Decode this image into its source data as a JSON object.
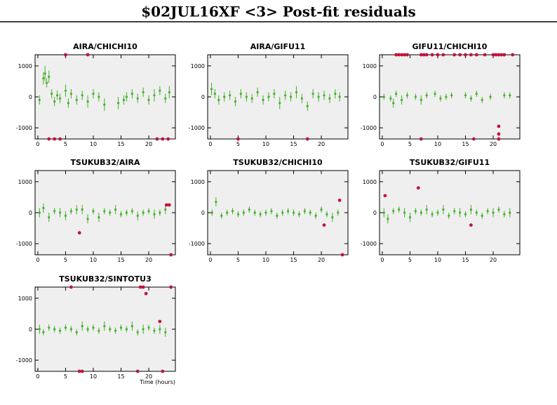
{
  "title": "$02JUL16XF <3> Post-fit residuals",
  "chart_data": [
    {
      "type": "scatter",
      "title": "AIRA/CHICHI10",
      "xlim": [
        -0.5,
        24.8
      ],
      "ylim": [
        -1360,
        1360
      ],
      "xticks": [
        0,
        5,
        10,
        15,
        20
      ],
      "yticks": [
        1000,
        0,
        -1000
      ],
      "series": [
        {
          "color": "#44b02a",
          "x": [
            0.3,
            1,
            1.3,
            1.6,
            2,
            2.5,
            3,
            3.5,
            4,
            5,
            5.5,
            6,
            7,
            8,
            9,
            10,
            11,
            12,
            14.5,
            15.5,
            16,
            17,
            18,
            19,
            20,
            21,
            22,
            23,
            23.7
          ],
          "values": [
            -100,
            600,
            750,
            450,
            650,
            100,
            -150,
            50,
            -50,
            200,
            -200,
            100,
            -100,
            50,
            -150,
            100,
            0,
            -250,
            -200,
            -100,
            0,
            100,
            -50,
            150,
            -100,
            50,
            200,
            -50,
            150
          ],
          "errors": [
            150,
            200,
            250,
            150,
            200,
            150,
            150,
            150,
            150,
            200,
            150,
            150,
            150,
            150,
            200,
            150,
            150,
            200,
            200,
            150,
            150,
            150,
            150,
            150,
            150,
            200,
            150,
            150,
            200
          ]
        },
        {
          "color": "#c0143c",
          "x": [
            2,
            3,
            4,
            5,
            9,
            21.5,
            22.5,
            23.5
          ],
          "values": [
            -1360,
            -1360,
            -1360,
            1360,
            1360,
            -1360,
            -1360,
            -1360
          ]
        }
      ]
    },
    {
      "type": "scatter",
      "title": "AIRA/GIFU11",
      "xlim": [
        -0.5,
        24.8
      ],
      "ylim": [
        -1360,
        1360
      ],
      "xticks": [
        0,
        5,
        10,
        15,
        20
      ],
      "yticks": [
        1000,
        0,
        -1000
      ],
      "series": [
        {
          "color": "#44b02a",
          "x": [
            0.2,
            0.8,
            1.5,
            2.5,
            3.5,
            4.5,
            5.5,
            6.5,
            7.5,
            8.5,
            9.5,
            10.5,
            11.5,
            12.5,
            13.5,
            14.5,
            15.5,
            16.5,
            17.5,
            18.5,
            19.5,
            20.5,
            21.5,
            22.5,
            23.3
          ],
          "values": [
            250,
            100,
            -100,
            0,
            50,
            -150,
            100,
            0,
            -50,
            150,
            -100,
            0,
            100,
            -200,
            50,
            0,
            150,
            -50,
            -300,
            100,
            0,
            50,
            -50,
            100,
            0
          ],
          "errors": [
            200,
            150,
            150,
            150,
            150,
            150,
            150,
            150,
            150,
            150,
            150,
            150,
            150,
            200,
            150,
            150,
            200,
            150,
            150,
            150,
            150,
            150,
            150,
            150,
            150
          ]
        },
        {
          "color": "#c0143c",
          "x": [
            5,
            17.5
          ],
          "values": [
            -1360,
            -1360
          ]
        }
      ]
    },
    {
      "type": "scatter",
      "title": "GIFU11/CHICHI10",
      "xlim": [
        -0.5,
        24.8
      ],
      "ylim": [
        -1360,
        1360
      ],
      "xticks": [
        0,
        5,
        10,
        15,
        20
      ],
      "yticks": [
        1000,
        0,
        -1000
      ],
      "series": [
        {
          "color": "#44b02a",
          "x": [
            0.3,
            1.5,
            2,
            2.5,
            3.5,
            4.5,
            6,
            7,
            8,
            9.5,
            10.5,
            11.5,
            12.5,
            15,
            16,
            17,
            18,
            19.5,
            22,
            23
          ],
          "values": [
            0,
            -50,
            -200,
            100,
            -100,
            50,
            0,
            -100,
            50,
            100,
            -50,
            0,
            50,
            50,
            -50,
            100,
            -100,
            0,
            50,
            50
          ],
          "errors": [
            100,
            100,
            150,
            100,
            150,
            100,
            100,
            150,
            100,
            100,
            100,
            100,
            100,
            100,
            100,
            100,
            100,
            100,
            100,
            100
          ]
        },
        {
          "color": "#c0143c",
          "x": [
            2.5,
            3,
            3.5,
            4,
            4.5,
            7,
            7.5,
            8,
            9,
            10,
            11,
            13,
            14,
            15,
            16,
            17,
            18.5,
            20,
            20.5,
            21,
            21.5,
            22,
            23.5,
            7,
            16.5,
            21,
            21,
            21
          ],
          "values": [
            1360,
            1360,
            1360,
            1360,
            1360,
            1360,
            1360,
            1360,
            1360,
            1360,
            1360,
            1360,
            1360,
            1360,
            1360,
            1360,
            1360,
            1360,
            1360,
            1360,
            1360,
            1360,
            1360,
            -1360,
            -1360,
            -1360,
            -1200,
            -950
          ]
        }
      ]
    },
    {
      "type": "scatter",
      "title": "TSUKUB32/AIRA",
      "xlim": [
        -0.5,
        24.8
      ],
      "ylim": [
        -1360,
        1360
      ],
      "xticks": [
        0,
        5,
        10,
        15,
        20
      ],
      "yticks": [
        1000,
        0,
        -1000
      ],
      "series": [
        {
          "color": "#44b02a",
          "x": [
            0.3,
            1,
            2,
            3,
            4,
            5,
            6,
            7,
            8,
            9,
            10,
            11,
            12,
            13,
            14,
            15,
            16,
            17,
            18,
            19,
            20,
            21,
            22,
            23
          ],
          "values": [
            0,
            150,
            -150,
            50,
            0,
            -100,
            50,
            100,
            100,
            -200,
            50,
            -150,
            50,
            0,
            100,
            -50,
            0,
            50,
            -100,
            0,
            50,
            -50,
            0,
            100
          ],
          "errors": [
            150,
            150,
            150,
            100,
            150,
            150,
            100,
            150,
            150,
            150,
            100,
            150,
            100,
            100,
            150,
            100,
            100,
            100,
            150,
            100,
            100,
            150,
            100,
            150
          ]
        },
        {
          "color": "#c0143c",
          "x": [
            7.5,
            23.2,
            23.7,
            24
          ],
          "values": [
            -650,
            250,
            250,
            -1360
          ]
        }
      ]
    },
    {
      "type": "scatter",
      "title": "TSUKUB32/CHICHI10",
      "xlim": [
        -0.5,
        24.8
      ],
      "ylim": [
        -1360,
        1360
      ],
      "xticks": [
        0,
        5,
        10,
        15,
        20
      ],
      "yticks": [
        1000,
        0,
        -1000
      ],
      "series": [
        {
          "color": "#44b02a",
          "x": [
            0.3,
            1,
            2,
            3,
            4,
            5,
            6,
            7,
            8,
            9,
            10,
            11,
            12,
            13,
            14,
            15,
            16,
            17,
            18,
            19,
            20,
            21,
            22,
            23
          ],
          "values": [
            0,
            350,
            -100,
            0,
            50,
            -50,
            0,
            100,
            0,
            -50,
            0,
            50,
            -100,
            0,
            50,
            0,
            -50,
            50,
            0,
            -100,
            100,
            -50,
            -150,
            0
          ],
          "errors": [
            100,
            150,
            100,
            100,
            100,
            100,
            100,
            100,
            100,
            100,
            100,
            100,
            100,
            100,
            100,
            100,
            100,
            100,
            100,
            100,
            100,
            100,
            150,
            100
          ]
        },
        {
          "color": "#c0143c",
          "x": [
            20.5,
            23.3,
            23.8
          ],
          "values": [
            -400,
            400,
            -1360
          ]
        }
      ]
    },
    {
      "type": "scatter",
      "title": "TSUKUB32/GIFU11",
      "xlim": [
        -0.5,
        24.8
      ],
      "ylim": [
        -1360,
        1360
      ],
      "xticks": [
        0,
        5,
        10,
        15,
        20
      ],
      "yticks": [
        1000,
        0,
        -1000
      ],
      "series": [
        {
          "color": "#44b02a",
          "x": [
            0.3,
            1,
            2,
            3,
            4,
            5,
            6,
            7,
            8,
            9,
            10,
            11,
            12,
            13,
            14,
            15,
            16,
            17,
            18,
            19,
            20,
            21,
            22,
            23
          ],
          "values": [
            0,
            -200,
            50,
            100,
            0,
            -150,
            50,
            0,
            100,
            -50,
            0,
            100,
            -100,
            50,
            0,
            -50,
            100,
            0,
            -100,
            50,
            0,
            100,
            -50,
            0
          ],
          "errors": [
            150,
            150,
            100,
            100,
            150,
            150,
            100,
            100,
            150,
            100,
            100,
            150,
            100,
            100,
            150,
            100,
            150,
            100,
            100,
            100,
            150,
            100,
            100,
            150
          ]
        },
        {
          "color": "#c0143c",
          "x": [
            0.5,
            6.5,
            16
          ],
          "values": [
            550,
            800,
            -400
          ]
        }
      ]
    },
    {
      "type": "scatter",
      "title": "TSUKUB32/SINTOTU3",
      "xlabel": "Time (hours)",
      "xlim": [
        -0.5,
        24.8
      ],
      "ylim": [
        -1360,
        1360
      ],
      "xticks": [
        0,
        5,
        10,
        15,
        20
      ],
      "yticks": [
        1000,
        0,
        -1000
      ],
      "series": [
        {
          "color": "#44b02a",
          "x": [
            0.3,
            1,
            2,
            3,
            4,
            5,
            6,
            7,
            8,
            9,
            10,
            11,
            12,
            13,
            14,
            15,
            16,
            17,
            18,
            19,
            20,
            21,
            22,
            23
          ],
          "values": [
            0,
            -100,
            50,
            0,
            -50,
            50,
            0,
            -100,
            100,
            0,
            50,
            -50,
            100,
            0,
            -50,
            50,
            0,
            100,
            -100,
            0,
            50,
            -50,
            0,
            -100
          ],
          "errors": [
            150,
            100,
            100,
            100,
            100,
            100,
            100,
            100,
            150,
            100,
            100,
            100,
            150,
            100,
            100,
            100,
            100,
            150,
            100,
            150,
            100,
            100,
            150,
            150
          ]
        },
        {
          "color": "#c0143c",
          "x": [
            6,
            18.5,
            19,
            24,
            19.5,
            22,
            7.5,
            8,
            18,
            22.5
          ],
          "values": [
            1360,
            1360,
            1360,
            1360,
            1150,
            250,
            -1360,
            -1360,
            -1360,
            -1360
          ]
        }
      ]
    }
  ]
}
